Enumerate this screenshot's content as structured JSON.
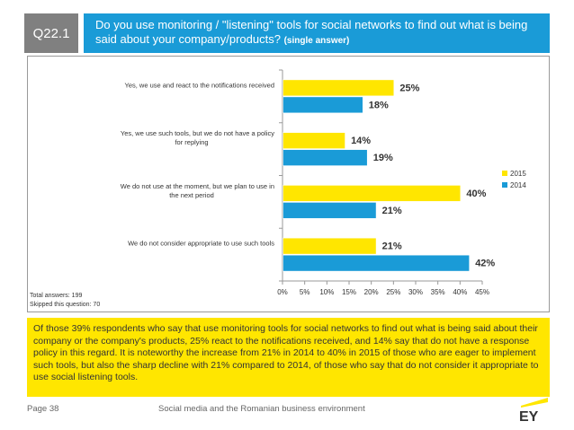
{
  "question": {
    "number": "Q22.1",
    "text": "Do you use monitoring / \"listening\" tools for social networks to find out what is being said about your company/products?",
    "note": "(single answer)"
  },
  "chart_data": {
    "type": "bar",
    "orientation": "horizontal",
    "categories": [
      "Yes, we use and react to the notifications received",
      "Yes, we use such tools, but we do not have a policy for replying",
      "We do not use at the moment, but we plan to use in the next period",
      "We do not consider appropriate to use such tools"
    ],
    "category_lines": [
      [
        "Yes, we use and react to the notifications received"
      ],
      [
        "Yes, we use such tools, but we do not have a policy",
        "for replying"
      ],
      [
        "We do not use at the moment, but we plan to use in",
        "the next period"
      ],
      [
        "We do not consider appropriate to use such tools"
      ]
    ],
    "series": [
      {
        "name": "2015",
        "color": "#ffe600",
        "values": [
          25,
          14,
          40,
          21
        ],
        "labels": [
          "25%",
          "14%",
          "40%",
          "21%"
        ]
      },
      {
        "name": "2014",
        "color": "#1a9bd7",
        "values": [
          18,
          19,
          21,
          42
        ],
        "labels": [
          "18%",
          "19%",
          "21%",
          "42%"
        ]
      }
    ],
    "xlim": [
      0,
      45
    ],
    "xticks": [
      0,
      5,
      10,
      15,
      20,
      25,
      30,
      35,
      40,
      45
    ],
    "xtick_labels": [
      "0%",
      "5%",
      "10%",
      "15%",
      "20%",
      "25%",
      "30%",
      "35%",
      "40%",
      "45%"
    ],
    "grid": false,
    "legend_position": "right"
  },
  "totals": {
    "answers": "Total answers: 199",
    "skipped": "Skipped this question: 70"
  },
  "summary": "Of those 39% respondents who say that use monitoring tools for social networks to find out what is being said about their company or the company's products, 25% react to the notifications received, and 14% say that do not have a response policy in this regard. It is noteworthy the increase from 21% in 2014 to 40% in 2015 of those who are eager to implement such tools, but also the sharp decline with 21% compared to 2014, of those who say that do not consider it appropriate to use social listening tools.",
  "footer": {
    "page": "Page 38",
    "title": "Social media and the Romanian business environment",
    "logo_text": "EY"
  }
}
